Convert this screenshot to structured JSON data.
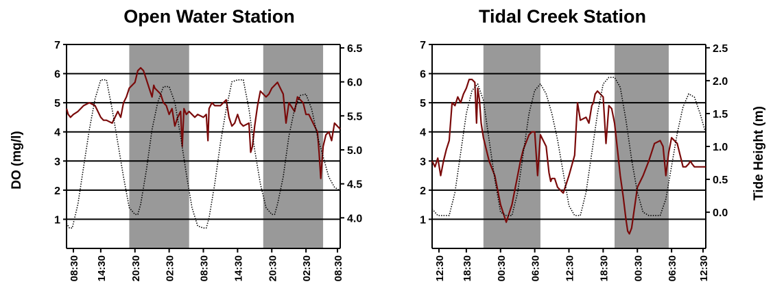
{
  "chart_data": [
    {
      "type": "line",
      "title": "Open Water Station",
      "ylabel": "DO (mg/l)",
      "y2label": "",
      "ylim": [
        0,
        7
      ],
      "y2lim": [
        3.55,
        6.55
      ],
      "yticks": [
        "1",
        "2",
        "3",
        "4",
        "5",
        "6",
        "7"
      ],
      "y2ticks": [
        "4.0",
        "4.5",
        "5.0",
        "5.5",
        "6.0",
        "6.5"
      ],
      "xlim": [
        0,
        48
      ],
      "xticks": [
        "08:30",
        "14:30",
        "20:30",
        "02:30",
        "08:30",
        "14:30",
        "20:30",
        "02:30",
        "08:30"
      ],
      "grid": "horizontal",
      "night_shading": [
        [
          11,
          21.5
        ],
        [
          34.5,
          45
        ]
      ],
      "series": [
        {
          "axis": "left",
          "style": "solid",
          "color": "#7a0a0a",
          "x": [
            0,
            0.3,
            0.7,
            1.2,
            2,
            3,
            4,
            5,
            6,
            6.5,
            7,
            8,
            9,
            9.5,
            10,
            10.5,
            11,
            11.5,
            12,
            12.5,
            13,
            13.5,
            14,
            14.5,
            15,
            15.3,
            15.5,
            16,
            16.5,
            17,
            17.5,
            18,
            18.5,
            19,
            19.5,
            20,
            20.3,
            20.6,
            21,
            21.5,
            22,
            22.5,
            23,
            24,
            24.5,
            24.8,
            25,
            25.5,
            26,
            27,
            28,
            28.5,
            29,
            29.5,
            30,
            30.5,
            31,
            32,
            32.3,
            32.6,
            33,
            33.5,
            34,
            35,
            35.5,
            36,
            36.5,
            37,
            37.5,
            38,
            38.5,
            39,
            40,
            40.5,
            41,
            41.5,
            42,
            42.5,
            43,
            43.5,
            44,
            44.3,
            44.6,
            45,
            45.5,
            46,
            46.5,
            47,
            47.5,
            48
          ],
          "y": [
            4.8,
            4.6,
            4.5,
            4.6,
            4.7,
            4.9,
            5.0,
            4.9,
            4.5,
            4.4,
            4.4,
            4.3,
            4.7,
            4.5,
            5.0,
            5.2,
            5.5,
            5.6,
            5.7,
            6.1,
            6.2,
            6.1,
            5.8,
            5.5,
            5.2,
            5.6,
            5.5,
            5.4,
            5.3,
            5.0,
            4.9,
            4.6,
            4.8,
            4.2,
            4.5,
            4.7,
            3.5,
            4.8,
            4.6,
            4.7,
            4.6,
            4.5,
            4.6,
            4.5,
            4.6,
            3.7,
            4.8,
            5.0,
            4.9,
            4.9,
            5.1,
            4.5,
            4.2,
            4.3,
            4.6,
            4.3,
            4.2,
            4.3,
            3.3,
            3.5,
            4.2,
            4.9,
            5.4,
            5.2,
            5.3,
            5.5,
            5.6,
            5.7,
            5.5,
            5.3,
            4.3,
            5.0,
            4.7,
            5.2,
            5.1,
            5.0,
            4.6,
            4.6,
            4.4,
            4.2,
            4.0,
            3.3,
            2.4,
            3.5,
            3.9,
            4.0,
            3.7,
            4.3,
            4.2,
            4.1
          ]
        },
        {
          "axis": "right",
          "style": "dotted",
          "color": "#000000",
          "x": [
            0,
            0.5,
            1,
            2,
            3,
            4,
            5,
            6,
            7,
            8,
            9,
            10,
            11,
            12,
            12.5,
            13,
            14,
            15,
            16,
            17,
            18,
            19,
            20,
            21,
            22,
            23,
            24,
            24.5,
            25,
            26,
            27,
            28,
            29,
            30,
            31,
            32,
            33,
            34,
            35,
            36,
            36.5,
            37,
            38,
            39,
            40,
            41,
            42,
            43,
            44,
            45,
            46,
            47,
            48
          ],
          "y": [
            3.92,
            3.85,
            3.85,
            4.2,
            4.75,
            5.3,
            5.75,
            6.03,
            6.03,
            5.6,
            5.1,
            4.6,
            4.15,
            4.05,
            4.05,
            4.2,
            4.7,
            5.3,
            5.7,
            5.93,
            5.93,
            5.7,
            5.2,
            4.65,
            4.15,
            3.88,
            3.85,
            3.85,
            4.0,
            4.5,
            5.1,
            5.6,
            6.0,
            6.03,
            6.03,
            5.6,
            5.0,
            4.5,
            4.15,
            4.05,
            4.05,
            4.2,
            4.6,
            5.2,
            5.6,
            5.8,
            5.82,
            5.6,
            5.2,
            4.9,
            4.6,
            4.45,
            4.4
          ]
        }
      ]
    },
    {
      "type": "line",
      "title": "Tidal Creek Station",
      "ylabel": "",
      "y2label": "Tide Height (m)",
      "ylim": [
        0,
        7
      ],
      "y2lim": [
        -0.55,
        2.55
      ],
      "yticks": [
        "1",
        "2",
        "3",
        "4",
        "5",
        "6",
        "7"
      ],
      "y2ticks": [
        "0.0",
        "0.5",
        "1.0",
        "1.5",
        "2.0",
        "2.5"
      ],
      "xlim": [
        0,
        48
      ],
      "xticks": [
        "12:30",
        "18:30",
        "00:30",
        "06:30",
        "12:30",
        "18:30",
        "00:30",
        "06:30",
        "12:30"
      ],
      "grid": "horizontal",
      "night_shading": [
        [
          9,
          19
        ],
        [
          32,
          41.5
        ]
      ],
      "series": [
        {
          "axis": "left",
          "style": "solid",
          "color": "#7a0a0a",
          "x": [
            0,
            0.5,
            1,
            1.5,
            2,
            2.5,
            3,
            3.5,
            4,
            4.5,
            5,
            5.5,
            6,
            6.5,
            7,
            7.5,
            7.8,
            8,
            8.3,
            8.6,
            9,
            10,
            11,
            12,
            13,
            14,
            15,
            15.5,
            16,
            17,
            17.5,
            18,
            18.5,
            19,
            20,
            20.5,
            20.8,
            21,
            21.5,
            22,
            23,
            24,
            25,
            25.5,
            26,
            27,
            27.5,
            28,
            28.3,
            28.6,
            29,
            29.5,
            30,
            30.5,
            31,
            31.5,
            32,
            32.5,
            33,
            33.5,
            34,
            34.3,
            34.6,
            35,
            35.5,
            36,
            37,
            38,
            39,
            40,
            40.5,
            41,
            41.5,
            42,
            43,
            43.5,
            44,
            44.5,
            45,
            45.3,
            45.6,
            46,
            46.5,
            47,
            47.5,
            48
          ],
          "y": [
            3.0,
            2.8,
            3.1,
            2.5,
            3.0,
            3.4,
            3.7,
            5.0,
            4.9,
            5.2,
            5.0,
            5.3,
            5.5,
            5.8,
            5.8,
            5.7,
            4.3,
            5.5,
            5.1,
            4.3,
            3.8,
            3.0,
            2.5,
            1.5,
            0.9,
            1.5,
            2.5,
            3.0,
            3.4,
            3.9,
            4.0,
            4.0,
            2.5,
            3.9,
            3.5,
            2.6,
            2.3,
            2.4,
            2.4,
            2.1,
            1.9,
            2.5,
            3.2,
            5.0,
            4.4,
            4.5,
            4.3,
            4.9,
            5.0,
            5.3,
            5.4,
            5.3,
            5.2,
            3.6,
            4.9,
            4.8,
            4.3,
            3.4,
            2.5,
            1.8,
            1.0,
            0.6,
            0.5,
            0.7,
            1.4,
            2.1,
            2.5,
            3.0,
            3.6,
            3.7,
            3.5,
            2.5,
            3.3,
            3.8,
            3.6,
            3.2,
            2.8,
            2.8,
            2.9,
            3.0,
            2.9,
            2.8,
            2.8,
            2.8,
            2.8,
            2.8
          ],
          "y_note": ""
        },
        {
          "axis": "right",
          "style": "dotted",
          "color": "#000000",
          "x": [
            0,
            0.5,
            1,
            2,
            3,
            4,
            5,
            6,
            7,
            8,
            9,
            10,
            11,
            12,
            13,
            14,
            15,
            16,
            17,
            18,
            19,
            20,
            21,
            22,
            23,
            24,
            25,
            26,
            27,
            28,
            29,
            30,
            31,
            32,
            33,
            34,
            35,
            36,
            37,
            38,
            39,
            40,
            41,
            42,
            43,
            44,
            45,
            46,
            47,
            48
          ],
          "y": [
            0.05,
            0.0,
            -0.05,
            -0.05,
            -0.05,
            0.3,
            0.9,
            1.5,
            1.85,
            1.95,
            1.7,
            1.1,
            0.5,
            0.0,
            -0.05,
            -0.05,
            0.3,
            0.9,
            1.5,
            1.85,
            1.95,
            1.8,
            1.5,
            1.1,
            0.6,
            0.1,
            -0.05,
            -0.05,
            0.3,
            0.9,
            1.5,
            1.95,
            2.05,
            2.05,
            1.9,
            1.4,
            0.8,
            0.3,
            0.0,
            -0.05,
            -0.05,
            -0.05,
            0.2,
            0.7,
            1.2,
            1.6,
            1.8,
            1.75,
            1.5,
            1.2
          ]
        }
      ]
    }
  ]
}
